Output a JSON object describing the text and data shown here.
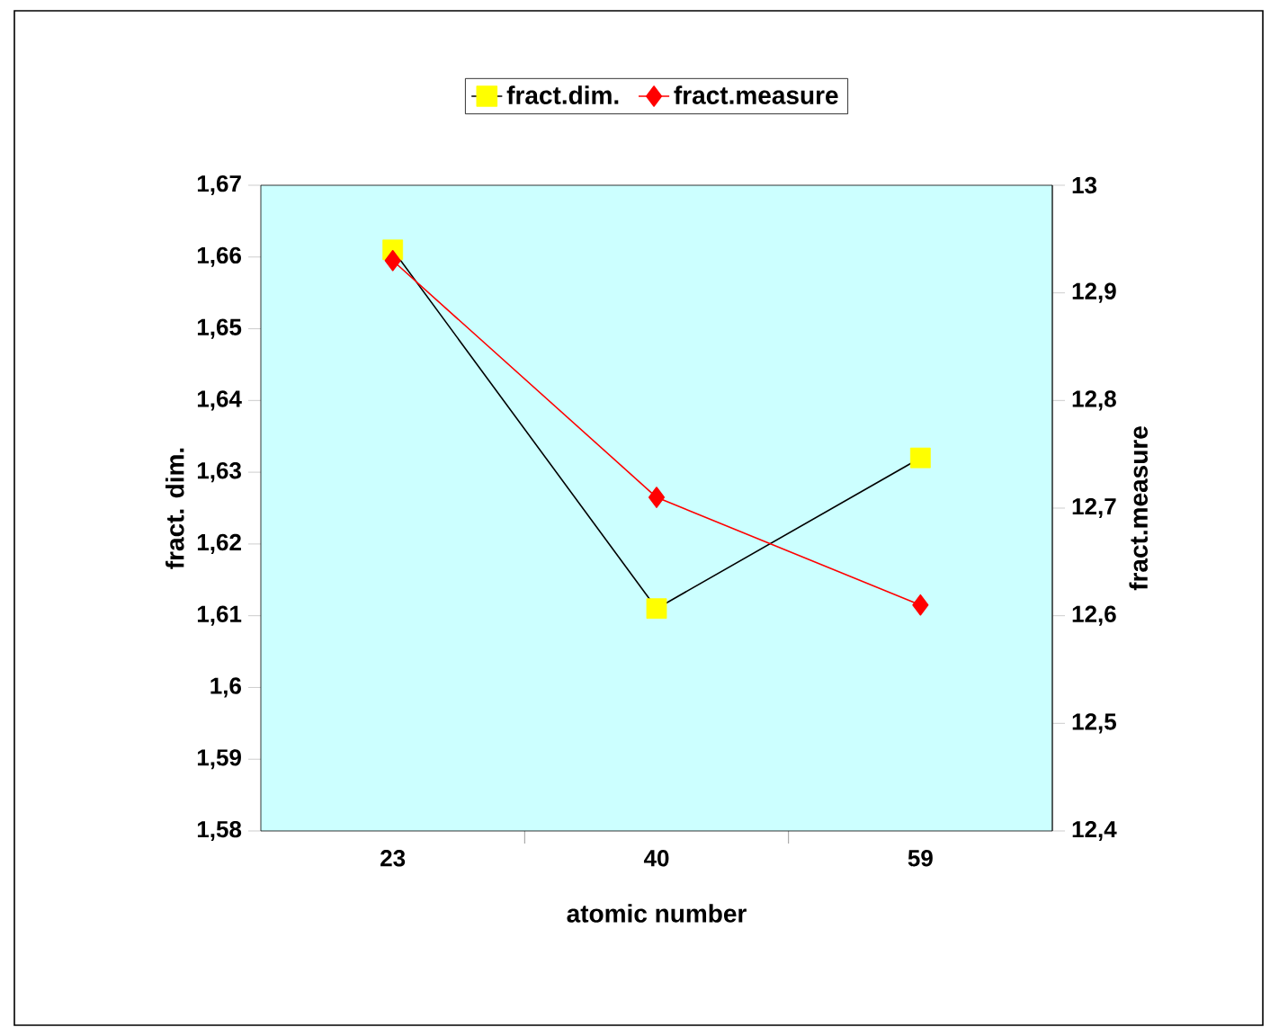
{
  "chart_data": {
    "type": "line",
    "xlabel": "atomic number",
    "ylabel": "fract. dim.",
    "y2label": "fract.measure",
    "categories": [
      "23",
      "40",
      "59"
    ],
    "series": [
      {
        "name": "fract.dim.",
        "color": "#000000",
        "colors": [
          "#ffff00",
          "#ffff00",
          "#ffff00"
        ],
        "marker": "square",
        "values": [
          1.661,
          1.611,
          1.632
        ]
      },
      {
        "name": "fract.measure",
        "color": "#ff0000",
        "marker": "diamond",
        "axis": "y2",
        "values": [
          12.93,
          12.71,
          12.61
        ]
      }
    ],
    "ylim": [
      1.58,
      1.67
    ],
    "yticks": [
      {
        "value": 1.58,
        "label": "1,58"
      },
      {
        "value": 1.59,
        "label": "1,59"
      },
      {
        "value": 1.6,
        "label": "1,6"
      },
      {
        "value": 1.61,
        "label": "1,61"
      },
      {
        "value": 1.62,
        "label": "1,62"
      },
      {
        "value": 1.63,
        "label": "1,63"
      },
      {
        "value": 1.64,
        "label": "1,64"
      },
      {
        "value": 1.65,
        "label": "1,65"
      },
      {
        "value": 1.66,
        "label": "1,66"
      },
      {
        "value": 1.67,
        "label": "1,67"
      }
    ],
    "y2lim": [
      12.4,
      13
    ],
    "y2ticks": [
      {
        "value": 12.4,
        "label": "12,4"
      },
      {
        "value": 12.5,
        "label": "12,5"
      },
      {
        "value": 12.6,
        "label": "12,6"
      },
      {
        "value": 12.7,
        "label": "12,7"
      },
      {
        "value": 12.8,
        "label": "12,8"
      },
      {
        "value": 12.9,
        "label": "12,9"
      },
      13
    ],
    "legend": "top",
    "grid": false
  }
}
